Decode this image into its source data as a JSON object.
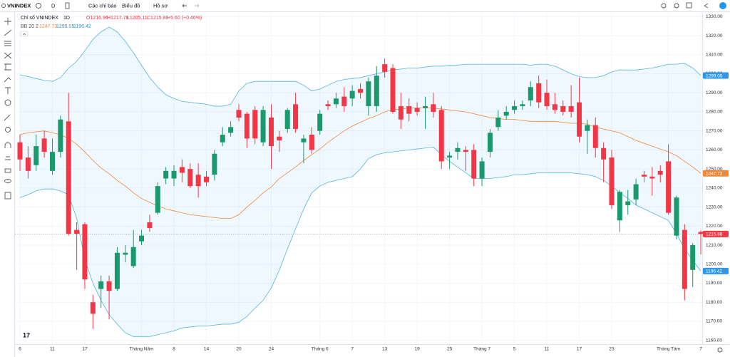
{
  "toolbar": {
    "symbol": "VNINDEX",
    "interval": "D",
    "indicators": "Các chỉ báo",
    "chart": "Biểu đồ",
    "profile": "Hồ sơ"
  },
  "chart_data": {
    "type": "candlestick",
    "title": "Chỉ số VNINDEX",
    "interval": "1D",
    "ohlc_text": [
      "O1216.96",
      "H1217.78",
      "L1205.11",
      "C1215.88",
      "+5.60 (+0.46%)"
    ],
    "indicator_label": "BB 20 2",
    "up_color": "#1a9a6c",
    "down_color": "#f23645",
    "band_fill": "rgba(33,150,243,0.07)",
    "grid": true,
    "categories": [
      "6",
      null,
      null,
      null,
      "11",
      null,
      null,
      null,
      "17",
      null,
      null,
      null,
      null,
      null,
      null,
      "Tháng Năm",
      null,
      null,
      null,
      "8",
      null,
      null,
      null,
      "14",
      null,
      null,
      null,
      "20",
      null,
      null,
      null,
      "24",
      null,
      null,
      null,
      null,
      null,
      "Tháng 6",
      null,
      null,
      null,
      "7",
      null,
      null,
      null,
      "13",
      null,
      null,
      null,
      "19",
      null,
      null,
      null,
      "25",
      null,
      null,
      null,
      "Tháng 7",
      null,
      null,
      null,
      "5",
      null,
      null,
      null,
      "11",
      null,
      null,
      null,
      "17",
      null,
      null,
      null,
      "23",
      null,
      null,
      null,
      null,
      null,
      null,
      "Tháng Tám",
      null,
      null,
      null,
      "7"
    ],
    "open": [
      1264,
      1256,
      1252,
      1266,
      1249,
      1259,
      1275,
      1218,
      1221,
      1180,
      1187,
      1191,
      1187,
      1205,
      1199,
      1212,
      1222,
      1227,
      1245,
      1245,
      1251,
      1250,
      1247,
      1246,
      1247,
      1264,
      1269,
      1281,
      1279,
      1281,
      1264,
      1277,
      1267,
      1271,
      1284,
      1264,
      1268,
      1270,
      1284,
      1284,
      1288,
      1287,
      1292,
      1283,
      1283,
      1305,
      1303,
      1283,
      1283,
      1282,
      1282,
      1284,
      1281,
      1256,
      1259,
      1260,
      1260,
      1245,
      1259,
      1272,
      1278,
      1281,
      1283,
      1286,
      1295,
      1290,
      1284,
      1283,
      1283,
      1285,
      1270,
      1273,
      1261,
      1256,
      1223,
      1231,
      1234,
      1247,
      1246,
      1249,
      1254,
      1215,
      1218,
      1197,
      1216.96
    ],
    "high": [
      1268,
      1262,
      1268,
      1270,
      1266,
      1278,
      1290,
      1222,
      1222,
      1184,
      1194,
      1194,
      1209,
      1210,
      1218,
      1218,
      1226,
      1243,
      1251,
      1252,
      1255,
      1253,
      1253,
      1249,
      1260,
      1272,
      1275,
      1284,
      1280,
      1283,
      1283,
      1284,
      1270,
      1282,
      1290,
      1268,
      1272,
      1281,
      1286,
      1290,
      1293,
      1294,
      1295,
      1298,
      1304,
      1308,
      1305,
      1290,
      1287,
      1285,
      1288,
      1290,
      1283,
      1259,
      1264,
      1262,
      1263,
      1256,
      1271,
      1281,
      1283,
      1286,
      1286,
      1296,
      1299,
      1297,
      1290,
      1286,
      1294,
      1298,
      1276,
      1277,
      1264,
      1260,
      1239,
      1239,
      1245,
      1249,
      1251,
      1252,
      1263,
      1236,
      1221,
      1211,
      1217.78
    ],
    "low": [
      1249,
      1245,
      1249,
      1256,
      1247,
      1256,
      1215,
      1197,
      1187,
      1166,
      1177,
      1171,
      1186,
      1201,
      1198,
      1210,
      1217,
      1226,
      1242,
      1241,
      1243,
      1240,
      1235,
      1241,
      1244,
      1262,
      1267,
      1275,
      1261,
      1263,
      1262,
      1250,
      1259,
      1269,
      1269,
      1253,
      1258,
      1268,
      1281,
      1282,
      1280,
      1283,
      1287,
      1278,
      1280,
      1298,
      1279,
      1271,
      1275,
      1278,
      1271,
      1277,
      1250,
      1250,
      1255,
      1249,
      1241,
      1241,
      1256,
      1270,
      1276,
      1279,
      1281,
      1283,
      1282,
      1281,
      1279,
      1278,
      1277,
      1264,
      1258,
      1256,
      1243,
      1229,
      1217,
      1226,
      1231,
      1243,
      1236,
      1243,
      1226,
      1213,
      1181,
      1188,
      1205.11
    ],
    "close": [
      1255,
      1249,
      1262,
      1259,
      1259,
      1276,
      1216,
      1216,
      1192,
      1174,
      1191,
      1186,
      1206,
      1206,
      1209,
      1215,
      1219,
      1241,
      1249,
      1249,
      1248,
      1241,
      1241,
      1243,
      1258,
      1268,
      1272,
      1277,
      1266,
      1266,
      1281,
      1262,
      1265,
      1281,
      1271,
      1266,
      1260,
      1279,
      1283,
      1287,
      1283,
      1291,
      1290,
      1296,
      1299,
      1301,
      1280,
      1276,
      1279,
      1280,
      1283,
      1280,
      1254,
      1257,
      1261,
      1259,
      1245,
      1254,
      1269,
      1277,
      1280,
      1283,
      1284,
      1293,
      1285,
      1283,
      1281,
      1280,
      1280,
      1267,
      1273,
      1261,
      1255,
      1231,
      1238,
      1233,
      1242,
      1246,
      1245,
      1247,
      1227,
      1235,
      1187,
      1210,
      1215.88
    ],
    "series": [
      {
        "color": "#56b4d9",
        "values": [
          1299.5,
          1298.5,
          1297.5,
          1296.5,
          1296,
          1298,
          1303,
          1306.5,
          1312,
          1318,
          1322,
          1324.5,
          1322,
          1317,
          1311,
          1304.5,
          1298,
          1293,
          1289,
          1287,
          1285.5,
          1285,
          1284.5,
          1284,
          1283,
          1283,
          1284,
          1291,
          1295,
          1296,
          1296,
          1296,
          1296,
          1296,
          1296,
          1294,
          1291,
          1292,
          1294,
          1296,
          1297,
          1297.5,
          1298,
          1299,
          1300,
          1301,
          1302,
          1302.5,
          1303,
          1303,
          1303.5,
          1304,
          1304,
          1304.5,
          1304.5,
          1305,
          1305,
          1305,
          1305,
          1305,
          1305,
          1305,
          1305,
          1304.5,
          1305,
          1305,
          1304,
          1302,
          1300,
          1298.5,
          1298,
          1298,
          1299,
          1301,
          1302,
          1302,
          1302,
          1302.5,
          1303,
          1304,
          1305,
          1305,
          1305.5,
          1303,
          1299.05
        ]
      },
      {
        "color": "#f0883a",
        "values": [
          1268,
          1269,
          1269.5,
          1270,
          1269,
          1268,
          1266,
          1263,
          1259,
          1254.5,
          1250.5,
          1247.5,
          1244,
          1241,
          1237.5,
          1234.5,
          1232.5,
          1230.5,
          1229,
          1228,
          1227,
          1226,
          1225.5,
          1225,
          1224.5,
          1224,
          1224,
          1226,
          1230,
          1233.5,
          1237.5,
          1240.5,
          1245,
          1248,
          1251,
          1254.5,
          1257.5,
          1260.5,
          1264,
          1267,
          1270,
          1272.5,
          1274.5,
          1276.5,
          1278,
          1280,
          1281,
          1281.5,
          1282,
          1282,
          1282,
          1282,
          1281.5,
          1281,
          1280.5,
          1280,
          1279,
          1278,
          1277,
          1276.5,
          1276,
          1276,
          1275.5,
          1275,
          1275,
          1275,
          1275,
          1274.5,
          1274,
          1274,
          1273.5,
          1272,
          1271,
          1270,
          1269,
          1267,
          1265,
          1263.5,
          1262,
          1260.5,
          1259,
          1257,
          1254,
          1251,
          1247.73
        ]
      },
      {
        "color": "#56b4d9",
        "values": [
          1235,
          1236.5,
          1238.5,
          1239.5,
          1239.5,
          1238.5,
          1236.5,
          1224,
          1202.5,
          1190,
          1181,
          1173.5,
          1168.5,
          1164,
          1162,
          1162,
          1162,
          1163,
          1164,
          1165,
          1166.5,
          1167,
          1167.5,
          1167.5,
          1168,
          1168.5,
          1168.5,
          1169.5,
          1172.5,
          1177,
          1181,
          1187.5,
          1197,
          1208,
          1218.5,
          1229,
          1237.5,
          1241,
          1243,
          1244,
          1245,
          1246,
          1250,
          1255.5,
          1257.5,
          1258.5,
          1259,
          1259.5,
          1260,
          1260.5,
          1261,
          1261.5,
          1257.5,
          1254,
          1251,
          1248,
          1245,
          1245,
          1245,
          1245.5,
          1246,
          1247,
          1247,
          1247.5,
          1248,
          1248,
          1248,
          1248,
          1248,
          1247.5,
          1247,
          1246,
          1244,
          1241,
          1237.5,
          1234.5,
          1231,
          1229,
          1227,
          1225,
          1223,
          1216,
          1208,
          1202,
          1196.42
        ]
      }
    ],
    "ylim": [
      1158,
      1332
    ],
    "yticks": [
      {
        "value": 1160,
        "label": "1160.00"
      },
      {
        "value": 1170,
        "label": "1170.00"
      },
      {
        "value": 1180,
        "label": "1180.00"
      },
      {
        "value": 1190,
        "label": "1190.00"
      },
      {
        "value": 1200,
        "label": "1200.00"
      },
      {
        "value": 1210,
        "label": "1210.00"
      },
      {
        "value": 1220,
        "label": "1220.00"
      },
      {
        "value": 1230,
        "label": "1230.00"
      },
      {
        "value": 1240,
        "label": "1240.00"
      },
      {
        "value": 1250,
        "label": "1250.00"
      },
      {
        "value": 1260,
        "label": "1260.00"
      },
      {
        "value": 1270,
        "label": "1270.00"
      },
      {
        "value": 1280,
        "label": "1280.00"
      },
      {
        "value": 1290,
        "label": "1290.00"
      },
      {
        "value": 1300,
        "label": "1300.00"
      },
      {
        "value": 1310,
        "label": "1310.00"
      },
      {
        "value": 1320,
        "label": "1320.00"
      },
      {
        "value": 1330,
        "label": "1330.00"
      }
    ]
  }
}
